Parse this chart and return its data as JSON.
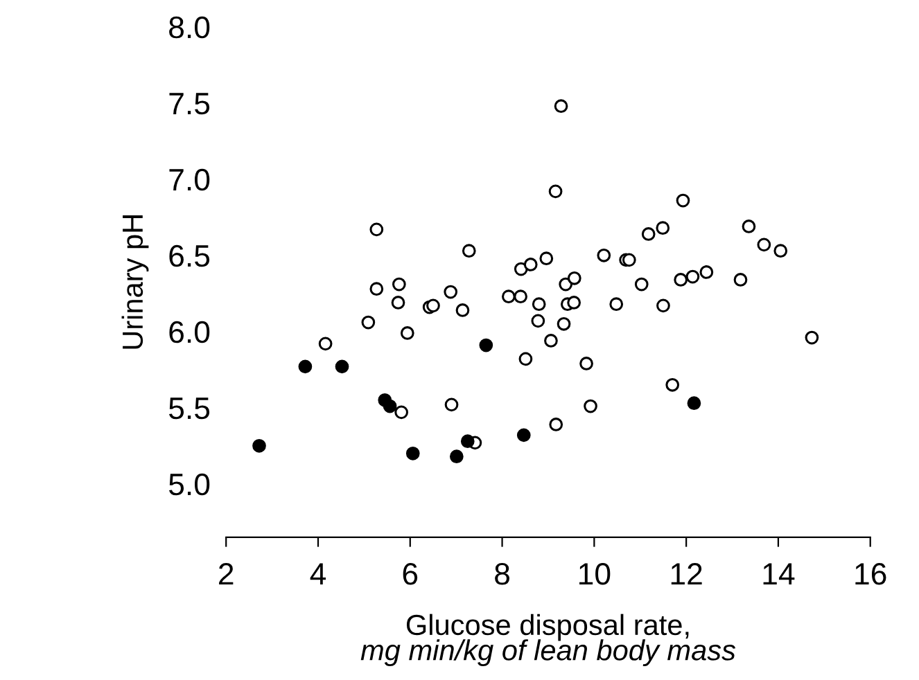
{
  "chart_data": {
    "type": "scatter",
    "xlabel": "Glucose disposal rate,\nmg min/kg of lean body mass",
    "ylabel": "Urinary pH",
    "xlim": [
      2,
      16
    ],
    "xticks": [
      2,
      4,
      6,
      8,
      10,
      12,
      14,
      16
    ],
    "ylim": [
      4.65,
      8.0
    ],
    "yticks": [
      {
        "value": 5.0,
        "label": "5.0"
      },
      {
        "value": 5.5,
        "label": "5.5"
      },
      {
        "value": 6.0,
        "label": "6.0"
      },
      {
        "value": 6.5,
        "label": "6.5"
      },
      {
        "value": 7.0,
        "label": "7.0"
      },
      {
        "value": 7.5,
        "label": "7.5"
      },
      {
        "value": 8.0,
        "label": "8.0"
      }
    ],
    "grid": false,
    "legend": false,
    "marker": "circle",
    "series": [
      {
        "color": "#ffffff",
        "x": [
          9.28,
          9.16,
          5.27,
          7.28,
          8.41,
          8.62,
          8.96,
          5.27,
          5.76,
          5.74,
          6.42,
          6.5,
          6.88,
          7.14,
          8.14,
          8.4,
          8.8,
          8.78,
          9.34,
          9.06,
          5.09,
          5.94,
          4.16,
          8.51,
          5.81,
          6.9,
          7.41,
          9.17,
          9.42,
          9.56,
          11.93,
          11.18,
          11.49,
          10.21,
          10.69,
          10.76,
          9.38,
          9.57,
          11.03,
          11.88,
          12.14,
          12.44,
          13.36,
          13.69,
          14.05,
          13.18,
          10.48,
          11.5,
          14.73,
          9.83,
          11.7,
          9.92
        ],
        "values": [
          7.48,
          6.92,
          6.67,
          6.53,
          6.41,
          6.44,
          6.48,
          6.28,
          6.31,
          6.19,
          6.16,
          6.17,
          6.26,
          6.14,
          6.23,
          6.23,
          6.18,
          6.07,
          6.05,
          5.94,
          6.06,
          5.99,
          5.92,
          5.82,
          5.47,
          5.52,
          5.27,
          5.39,
          6.18,
          6.19,
          6.86,
          6.64,
          6.68,
          6.5,
          6.47,
          6.47,
          6.31,
          6.35,
          6.31,
          6.34,
          6.36,
          6.39,
          6.69,
          6.57,
          6.53,
          6.34,
          6.18,
          6.17,
          5.96,
          5.79,
          5.65,
          5.51
        ]
      },
      {
        "color": "#000000",
        "x": [
          2.72,
          3.72,
          4.52,
          5.45,
          5.56,
          6.06,
          7.01,
          7.25,
          7.65,
          8.47,
          12.17
        ],
        "values": [
          5.25,
          5.77,
          5.77,
          5.55,
          5.51,
          5.2,
          5.18,
          5.28,
          5.91,
          5.32,
          5.53
        ]
      }
    ]
  }
}
